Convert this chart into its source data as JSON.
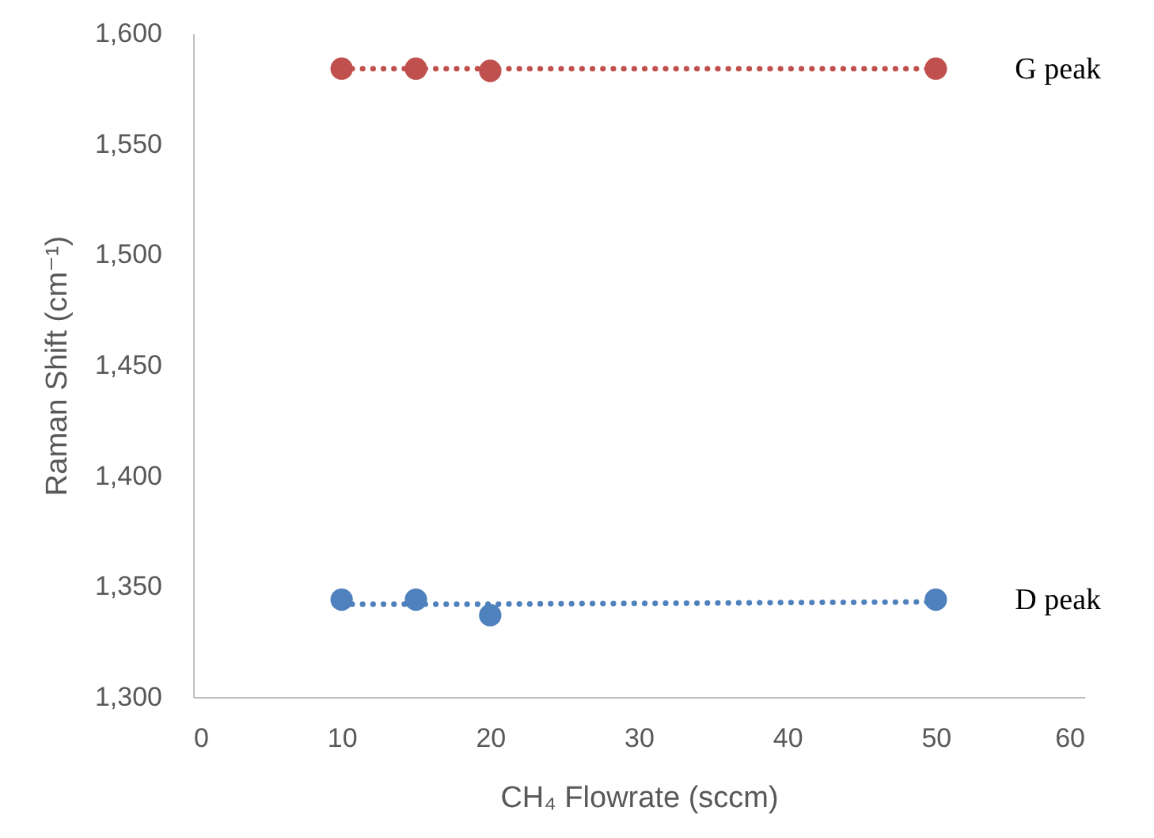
{
  "chart_data": {
    "type": "scatter",
    "xlabel": "CH₄ Flowrate (sccm)",
    "ylabel": "Raman Shift (cm⁻¹)",
    "x": [
      10,
      15,
      20,
      50
    ],
    "xlim": [
      0,
      60
    ],
    "xticks": [
      0,
      10,
      20,
      30,
      40,
      50,
      60
    ],
    "ylim": [
      1300,
      1600
    ],
    "yticks": [
      {
        "value": 1300,
        "label": "1,300"
      },
      {
        "value": 1350,
        "label": "1,350"
      },
      {
        "value": 1400,
        "label": "1,400"
      },
      {
        "value": 1450,
        "label": "1,450"
      },
      {
        "value": 1500,
        "label": "1,500"
      },
      {
        "value": 1550,
        "label": "1,550"
      },
      {
        "value": 1600,
        "label": "1,600"
      }
    ],
    "grid": false,
    "marker": "circle",
    "series": [
      {
        "name": "G peak",
        "color": "#c0504d",
        "values": [
          1584,
          1584,
          1583,
          1584
        ]
      },
      {
        "name": "D peak",
        "color": "#4f81bd",
        "values": [
          1344,
          1344,
          1337,
          1344
        ]
      },
      {
        "type": "line",
        "color": "#c0504d",
        "values": [
          1584,
          1584,
          1584,
          1584
        ],
        "line_style": "dotted",
        "marker": "none"
      },
      {
        "type": "line",
        "color": "#4f81bd",
        "values": [
          1342,
          1342,
          1342,
          1343
        ],
        "line_style": "dotted",
        "marker": "none"
      }
    ]
  }
}
